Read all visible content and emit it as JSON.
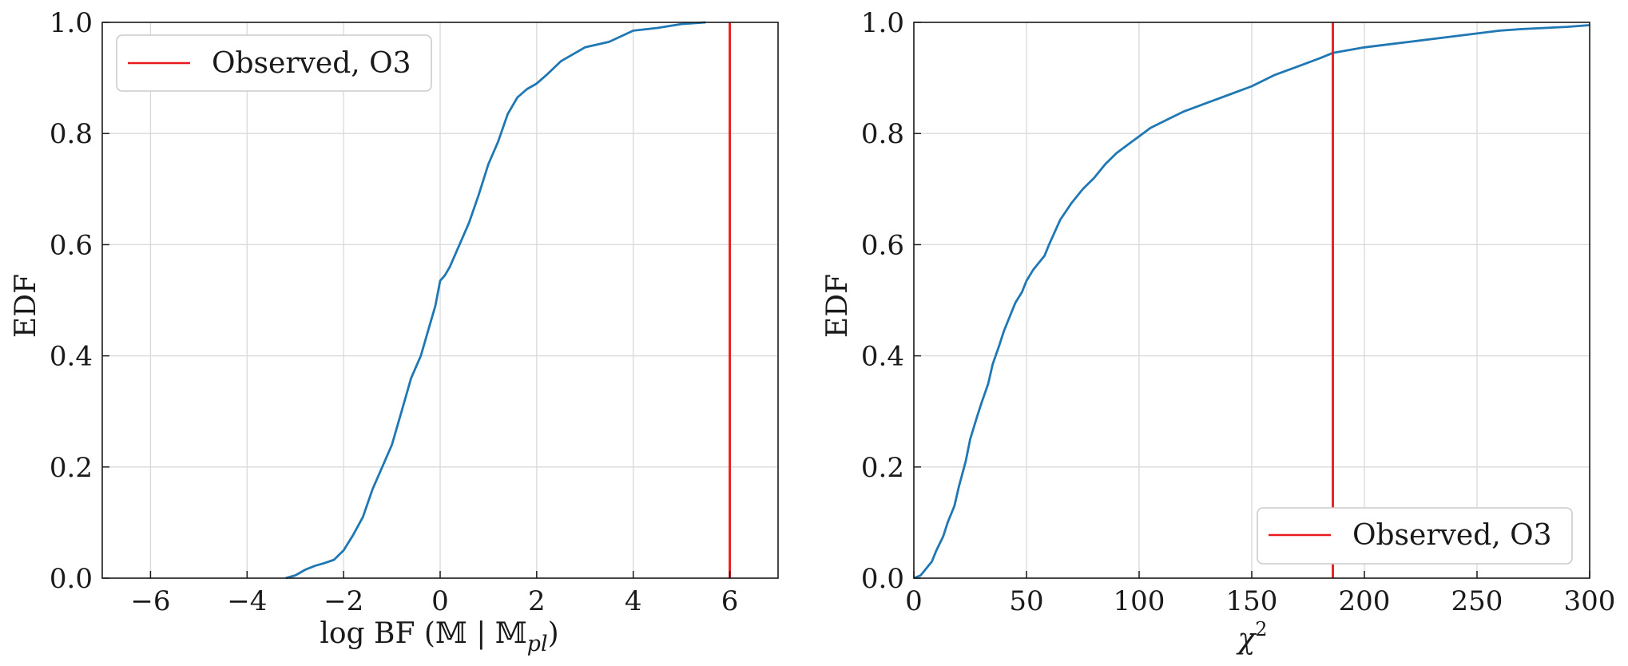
{
  "chart_data": [
    {
      "type": "line",
      "panel": "left",
      "xlabel": "log BF (𝕄 | 𝕄",
      "xlabel_sub": "pl",
      "xlabel_close": ")",
      "ylabel": "EDF",
      "xlim": [
        -7,
        7
      ],
      "ylim": [
        0,
        1
      ],
      "xticks": [
        -6,
        -4,
        -2,
        0,
        2,
        4,
        6
      ],
      "xtick_labels": [
        "−6",
        "−4",
        "−2",
        "0",
        "2",
        "4",
        "6"
      ],
      "yticks": [
        0,
        0.2,
        0.4,
        0.6,
        0.8,
        1.0
      ],
      "ytick_labels": [
        "0.0",
        "0.2",
        "0.4",
        "0.6",
        "0.8",
        "1.0"
      ],
      "grid": true,
      "legend_position": "upper-left",
      "series": [
        {
          "color": "#1f77b4",
          "kind": "edf",
          "x": [
            -3.2,
            -3.0,
            -2.8,
            -2.6,
            -2.4,
            -2.2,
            -2.0,
            -1.8,
            -1.6,
            -1.4,
            -1.2,
            -1.0,
            -0.8,
            -0.6,
            -0.4,
            -0.2,
            -0.1,
            0.0,
            0.1,
            0.2,
            0.4,
            0.6,
            0.8,
            1.0,
            1.2,
            1.4,
            1.6,
            1.8,
            2.0,
            2.2,
            2.5,
            3.0,
            3.5,
            4.0,
            4.5,
            5.0,
            5.5
          ],
          "y": [
            0.0,
            0.005,
            0.015,
            0.022,
            0.027,
            0.033,
            0.05,
            0.078,
            0.11,
            0.16,
            0.2,
            0.24,
            0.3,
            0.36,
            0.4,
            0.46,
            0.49,
            0.535,
            0.545,
            0.56,
            0.6,
            0.64,
            0.69,
            0.745,
            0.785,
            0.835,
            0.865,
            0.88,
            0.89,
            0.905,
            0.93,
            0.955,
            0.965,
            0.985,
            0.99,
            0.997,
            1.0
          ]
        }
      ],
      "vline": {
        "x": 6,
        "label": "Observed, O3",
        "color": "#e8191c"
      }
    },
    {
      "type": "line",
      "panel": "right",
      "xlabel": "χ",
      "xlabel_sup": "2",
      "ylabel": "EDF",
      "xlim": [
        0,
        300
      ],
      "ylim": [
        0,
        1
      ],
      "xticks": [
        0,
        50,
        100,
        150,
        200,
        250,
        300
      ],
      "xtick_labels": [
        "0",
        "50",
        "100",
        "150",
        "200",
        "250",
        "300"
      ],
      "yticks": [
        0,
        0.2,
        0.4,
        0.6,
        0.8,
        1.0
      ],
      "ytick_labels": [
        "0.0",
        "0.2",
        "0.4",
        "0.6",
        "0.8",
        "1.0"
      ],
      "grid": true,
      "legend_position": "lower-right",
      "series": [
        {
          "color": "#1f77b4",
          "kind": "edf",
          "x": [
            0,
            3,
            5,
            8,
            10,
            13,
            15,
            18,
            20,
            23,
            25,
            28,
            30,
            33,
            35,
            38,
            40,
            43,
            45,
            48,
            50,
            53,
            55,
            58,
            60,
            65,
            70,
            75,
            80,
            85,
            90,
            95,
            100,
            105,
            110,
            115,
            120,
            130,
            140,
            150,
            160,
            170,
            180,
            186,
            200,
            210,
            220,
            230,
            240,
            250,
            260,
            270,
            280,
            290,
            300
          ],
          "y": [
            0.0,
            0.005,
            0.015,
            0.03,
            0.05,
            0.075,
            0.1,
            0.13,
            0.165,
            0.21,
            0.25,
            0.29,
            0.315,
            0.35,
            0.385,
            0.42,
            0.445,
            0.475,
            0.495,
            0.515,
            0.535,
            0.555,
            0.565,
            0.58,
            0.6,
            0.645,
            0.675,
            0.7,
            0.72,
            0.745,
            0.765,
            0.78,
            0.795,
            0.81,
            0.82,
            0.83,
            0.84,
            0.855,
            0.87,
            0.885,
            0.905,
            0.92,
            0.935,
            0.945,
            0.955,
            0.96,
            0.965,
            0.97,
            0.975,
            0.98,
            0.985,
            0.988,
            0.99,
            0.992,
            0.995
          ]
        }
      ],
      "vline": {
        "x": 186,
        "label": "Observed, O3",
        "color": "#e8191c"
      }
    }
  ]
}
